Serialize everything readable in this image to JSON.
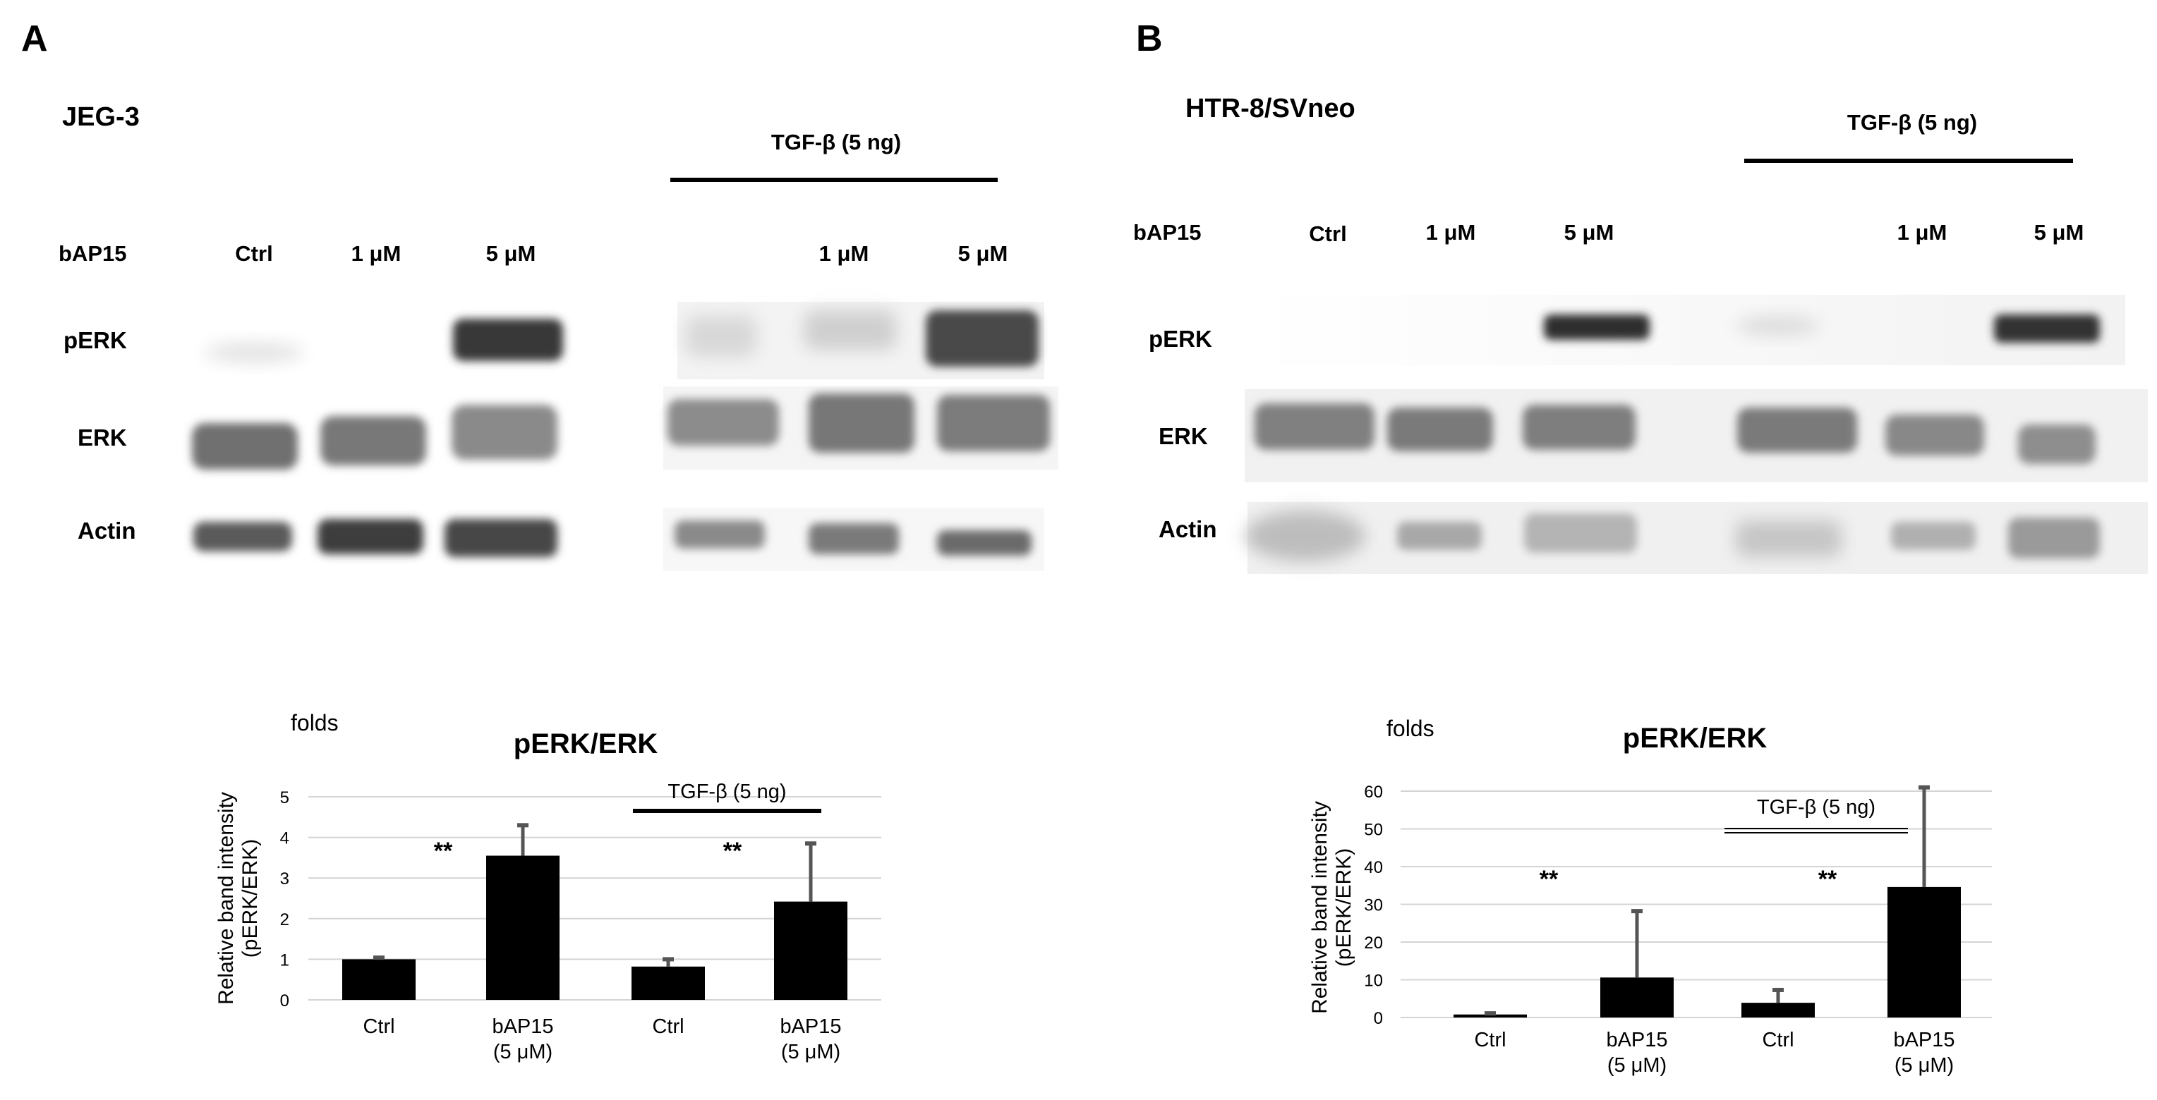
{
  "panels": [
    {
      "letter": "A",
      "cell_line": "JEG-3",
      "treatment_label": "TGF-β (5 ng)",
      "row_label": "bAP15",
      "lane_labels": [
        "Ctrl",
        "1 μM",
        "5 μM",
        "",
        "1 μM",
        "5 μM"
      ],
      "blot_labels": [
        "pERK",
        "ERK",
        "Actin"
      ]
    },
    {
      "letter": "B",
      "cell_line": "HTR-8/SVneo",
      "treatment_label": "TGF-β (5 ng)",
      "row_label": "bAP15",
      "lane_labels": [
        "Ctrl",
        "1 μM",
        "5 μM",
        "",
        "1 μM",
        "5 μM"
      ],
      "blot_labels": [
        "pERK",
        "ERK",
        "Actin"
      ]
    }
  ],
  "chart_data": [
    {
      "type": "bar",
      "title": "pERK/ERK",
      "unit_label": "folds",
      "ylabel": "Relative band intensity (pERK/ERK)",
      "ylabel_lines": [
        "Relative band intensity",
        "(pERK/ERK)"
      ],
      "xlabel": "",
      "categories": [
        "Ctrl",
        "bAP15 (5 μM)",
        "Ctrl",
        "bAP15 (5 μM)"
      ],
      "category_lines": [
        [
          "Ctrl"
        ],
        [
          "bAP15",
          "(5 μM)"
        ],
        [
          "Ctrl"
        ],
        [
          "bAP15",
          "(5 μM)"
        ]
      ],
      "values": [
        1.0,
        3.55,
        0.82,
        2.42
      ],
      "errors": [
        0.04,
        0.75,
        0.18,
        1.43
      ],
      "ylim": [
        0,
        5
      ],
      "yticks": [
        "0",
        "1",
        "2",
        "3",
        "4",
        "5"
      ],
      "grid": true,
      "significance": [
        "**",
        "**"
      ],
      "group_label": "TGF-β (5 ng)",
      "bar_color": "#000000",
      "error_color": "#555555"
    },
    {
      "type": "bar",
      "title": "pERK/ERK",
      "unit_label": "folds",
      "ylabel": "Relative band intensity (pERK/ERK)",
      "ylabel_lines": [
        "Relative band intensity",
        "(pERK/ERK)"
      ],
      "xlabel": "",
      "categories": [
        "Ctrl",
        "bAP15 (5 μM)",
        "Ctrl",
        "bAP15 (5 μM)"
      ],
      "category_lines": [
        [
          "Ctrl"
        ],
        [
          "bAP15",
          "(5 μM)"
        ],
        [
          "Ctrl"
        ],
        [
          "bAP15",
          "(5 μM)"
        ]
      ],
      "values": [
        0.8,
        10.6,
        3.9,
        34.6
      ],
      "errors": [
        0.3,
        17.6,
        3.4,
        26.4
      ],
      "ylim": [
        0,
        60
      ],
      "yticks": [
        "0",
        "10",
        "20",
        "30",
        "40",
        "50",
        "60"
      ],
      "grid": true,
      "significance": [
        "**",
        "**"
      ],
      "group_label": "TGF-β (5 ng)",
      "bar_color": "#000000",
      "error_color": "#555555"
    }
  ]
}
